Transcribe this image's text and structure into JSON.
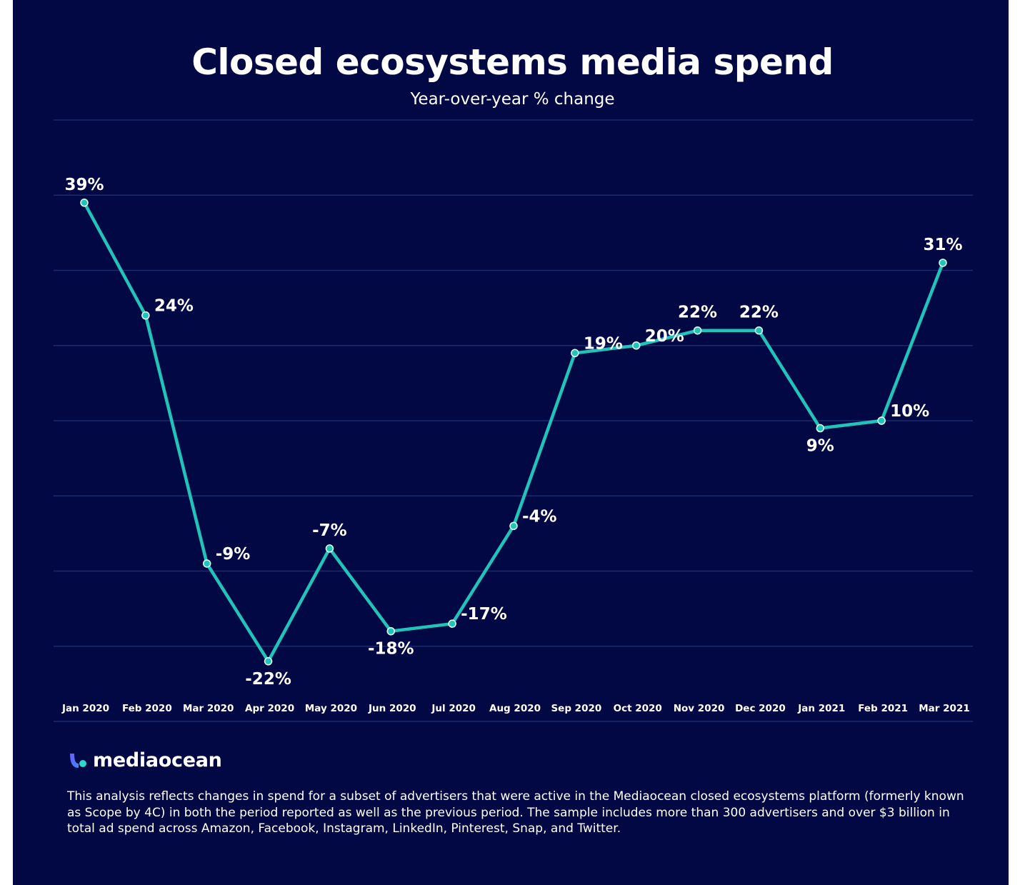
{
  "header": {
    "title": "Closed ecosystems media spend",
    "subtitle": "Year-over-year % change"
  },
  "chart_data": {
    "type": "line",
    "title": "Closed ecosystems media spend",
    "subtitle": "Year-over-year % change",
    "xlabel": "",
    "ylabel": "",
    "categories": [
      "Jan 2020",
      "Feb 2020",
      "Mar 2020",
      "Apr 2020",
      "May 2020",
      "Jun 2020",
      "Jul 2020",
      "Aug 2020",
      "Sep 2020",
      "Oct 2020",
      "Nov 2020",
      "Dec 2020",
      "Jan 2021",
      "Feb 2021",
      "Mar 2021"
    ],
    "series": [
      {
        "values": [
          39,
          24,
          -9,
          -22,
          -7,
          -18,
          -17,
          -4,
          19,
          20,
          22,
          22,
          9,
          10,
          31
        ],
        "labels": [
          "39%",
          "24%",
          "-9%",
          "-22%",
          "-7%",
          "-18%",
          "-17%",
          "-4%",
          "19%",
          "20%",
          "22%",
          "22%",
          "9%",
          "10%",
          "31%"
        ]
      }
    ],
    "ylim": [
      -30,
      50
    ],
    "grid": true,
    "legend": "none",
    "colors": {
      "line": "#20c4bb",
      "background": "#020844",
      "grid": "#1b2a6b",
      "text": "#ffffff"
    }
  },
  "logo": {
    "text": "mediaocean"
  },
  "footnote": "This analysis reflects changes in spend for a subset of advertisers that were active in the Mediaocean closed ecosystems platform (formerly known as Scope by 4C) in both the period reported as well as the previous period. The sample includes more than 300 advertisers and over $3 billion in total ad spend across Amazon, Facebook, Instagram, LinkedIn, Pinterest, Snap, and Twitter."
}
